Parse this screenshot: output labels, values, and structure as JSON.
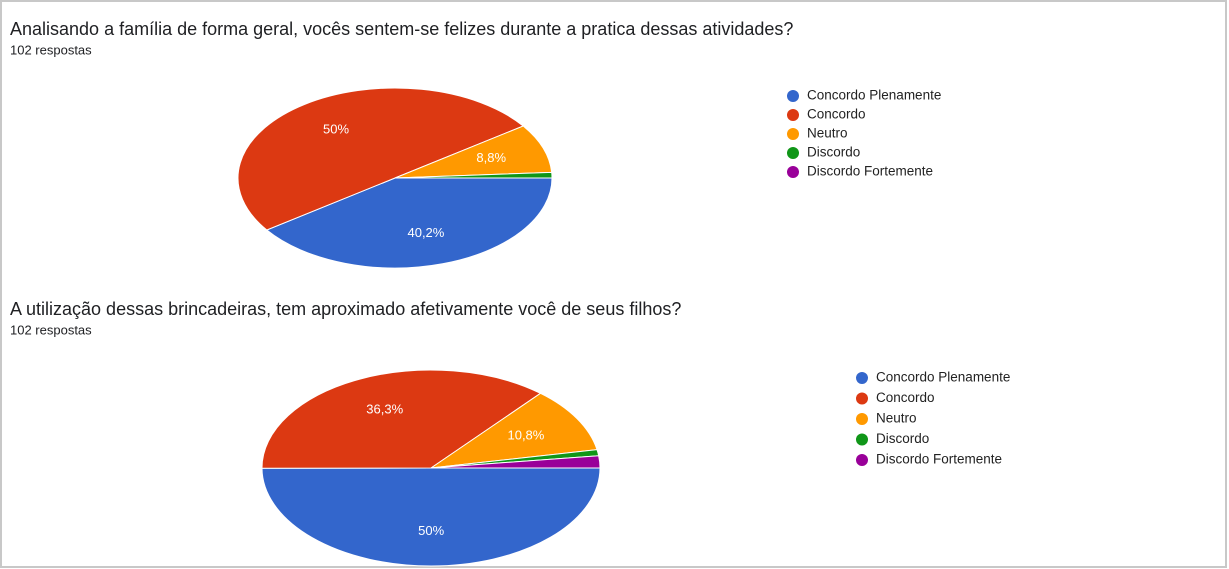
{
  "chart_data": [
    {
      "type": "pie",
      "title": "Analisando a família de forma geral, vocês sentem-se felizes durante a pratica dessas atividades?",
      "subtitle": "102 respostas",
      "categories": [
        "Concordo Plenamente",
        "Concordo",
        "Neutro",
        "Discordo",
        "Discordo Fortemente"
      ],
      "values": [
        40.2,
        50,
        8.8,
        1,
        0
      ],
      "value_labels": [
        "40,2%",
        "50%",
        "8,8%",
        null,
        null
      ],
      "colors": [
        "#3366cc",
        "#dc3912",
        "#ff9900",
        "#109618",
        "#990099"
      ]
    },
    {
      "type": "pie",
      "title": "A utilização dessas brincadeiras, tem aproximado afetivamente você de seus filhos?",
      "subtitle": "102 respostas",
      "categories": [
        "Concordo Plenamente",
        "Concordo",
        "Neutro",
        "Discordo",
        "Discordo Fortemente"
      ],
      "values": [
        50,
        36.3,
        10.8,
        1,
        2
      ],
      "value_labels": [
        "50%",
        "36,3%",
        "10,8%",
        null,
        null
      ],
      "colors": [
        "#3366cc",
        "#dc3912",
        "#ff9900",
        "#109618",
        "#990099"
      ]
    }
  ]
}
